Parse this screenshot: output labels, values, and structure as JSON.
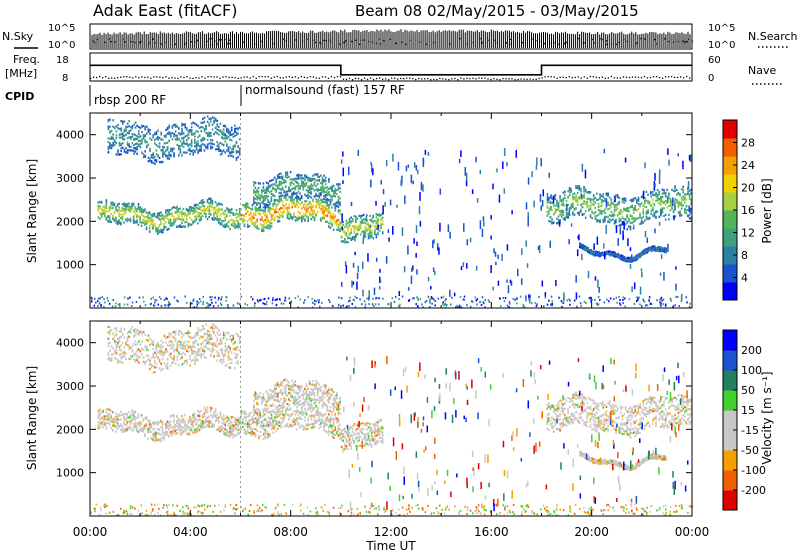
{
  "header": {
    "station": "Adak East (fitACF)",
    "beam_range": "Beam 08 02/May/2015 - 03/May/2015"
  },
  "panel_nsky": {
    "left_label": "N.Sky",
    "right_label": "N.Search",
    "left_ticks": [
      "10^5",
      "10^0"
    ],
    "right_ticks": [
      "10^5",
      "10^0"
    ]
  },
  "panel_freq": {
    "left_label_1": "Freq.",
    "left_label_2": "[MHz]",
    "right_label": "Nave",
    "left_ticks": [
      "18",
      "8"
    ],
    "right_ticks": [
      "60",
      "0"
    ]
  },
  "cpid": {
    "label": "CPID",
    "segments": [
      {
        "name": "rbsp 200 RF",
        "start_h": 0,
        "end_h": 6
      },
      {
        "name": "normalsound (fast) 157 RF",
        "start_h": 6,
        "end_h": 24
      }
    ]
  },
  "colors": {
    "power_scale": [
      "#0000ff",
      "#1a52d0",
      "#2e7fa8",
      "#3fa07f",
      "#52b55a",
      "#a8d040",
      "#f0d000",
      "#f5a000",
      "#f06000",
      "#e00000"
    ],
    "velocity_scale": [
      "#e00000",
      "#f06000",
      "#f5a000",
      "#c8c8c8",
      "#c8c8c8",
      "#40d030",
      "#208060",
      "#1a52d0",
      "#0000ff"
    ],
    "ground_scatter": "#c8c8c8"
  },
  "chart_data": [
    {
      "type": "line",
      "title": "N.Sky / N.Search",
      "x_unit": "hours UT",
      "x": [
        0,
        2,
        4,
        6,
        8,
        10,
        12,
        14,
        16,
        18,
        20,
        22,
        24
      ],
      "series": [
        {
          "name": "N.Sky",
          "values": [
            2.8,
            2.9,
            3.0,
            3.0,
            3.1,
            3.3,
            3.4,
            3.3,
            3.3,
            2.9,
            2.9,
            2.9,
            2.9
          ]
        },
        {
          "name": "N.Search",
          "values": [
            2.5,
            2.6,
            2.6,
            2.7,
            2.8,
            3.0,
            3.1,
            3.0,
            3.0,
            2.6,
            2.6,
            2.6,
            2.6
          ]
        }
      ]
    },
    {
      "type": "line",
      "title": "Freq. / Nave",
      "x_unit": "hours UT",
      "series": [
        {
          "name": "Freq. [MHz]",
          "points": [
            [
              0,
              13.6
            ],
            [
              10,
              13.6
            ],
            [
              10,
              10.2
            ],
            [
              18,
              10.2
            ],
            [
              18,
              13.6
            ],
            [
              24,
              13.6
            ]
          ]
        },
        {
          "name": "Nave",
          "points": [
            [
              0,
              9
            ],
            [
              10,
              9
            ],
            [
              10,
              6
            ],
            [
              18,
              6
            ],
            [
              18,
              9
            ],
            [
              24,
              9
            ]
          ]
        }
      ],
      "ylim_left": [
        8,
        18
      ],
      "ylim_right": [
        0,
        60
      ]
    },
    {
      "type": "heatmap",
      "panel": "power",
      "ylabel": "Slant Range [km]",
      "ylim": [
        0,
        4500
      ],
      "y_ticks": [
        "1000",
        "2000",
        "3000",
        "4000"
      ],
      "colorbar_label": "Power [dB]",
      "colorbar_ticks": [
        "4",
        "8",
        "12",
        "16",
        "20",
        "24",
        "28"
      ],
      "bands": [
        {
          "h0": 0.3,
          "h1": 6.0,
          "r_lo": 1900,
          "r_hi": 2380,
          "level": 5
        },
        {
          "h0": 6.0,
          "h1": 10.0,
          "r_lo": 1950,
          "r_hi": 2500,
          "level": 7
        },
        {
          "h0": 10.0,
          "h1": 11.7,
          "r_lo": 1650,
          "r_hi": 2200,
          "level": 5
        },
        {
          "h0": 18.2,
          "h1": 24.0,
          "r_lo": 2000,
          "r_hi": 2700,
          "level": 4
        },
        {
          "h0": 0.7,
          "h1": 6.0,
          "r_lo": 3500,
          "r_hi": 4300,
          "level": 2
        },
        {
          "h0": 6.5,
          "h1": 10.0,
          "r_lo": 2500,
          "r_hi": 3050,
          "level": 3
        },
        {
          "h0": 19.5,
          "h1": 23.0,
          "r_lo": 1250,
          "r_hi": 1350,
          "level": 1
        }
      ]
    },
    {
      "type": "heatmap",
      "panel": "velocity",
      "ylabel": "Slant Range [km]",
      "ylim": [
        0,
        4500
      ],
      "y_ticks": [
        "1000",
        "2000",
        "3000",
        "4000"
      ],
      "colorbar_label": "Velocity [m s⁻¹]",
      "colorbar_ticks": [
        "200",
        "100",
        "50",
        "15",
        "-15",
        "-50",
        "-100",
        "-200"
      ]
    }
  ],
  "x_axis": {
    "label": "Time UT",
    "ticks": [
      "00:00",
      "04:00",
      "08:00",
      "12:00",
      "16:00",
      "20:00",
      "00:00"
    ]
  }
}
